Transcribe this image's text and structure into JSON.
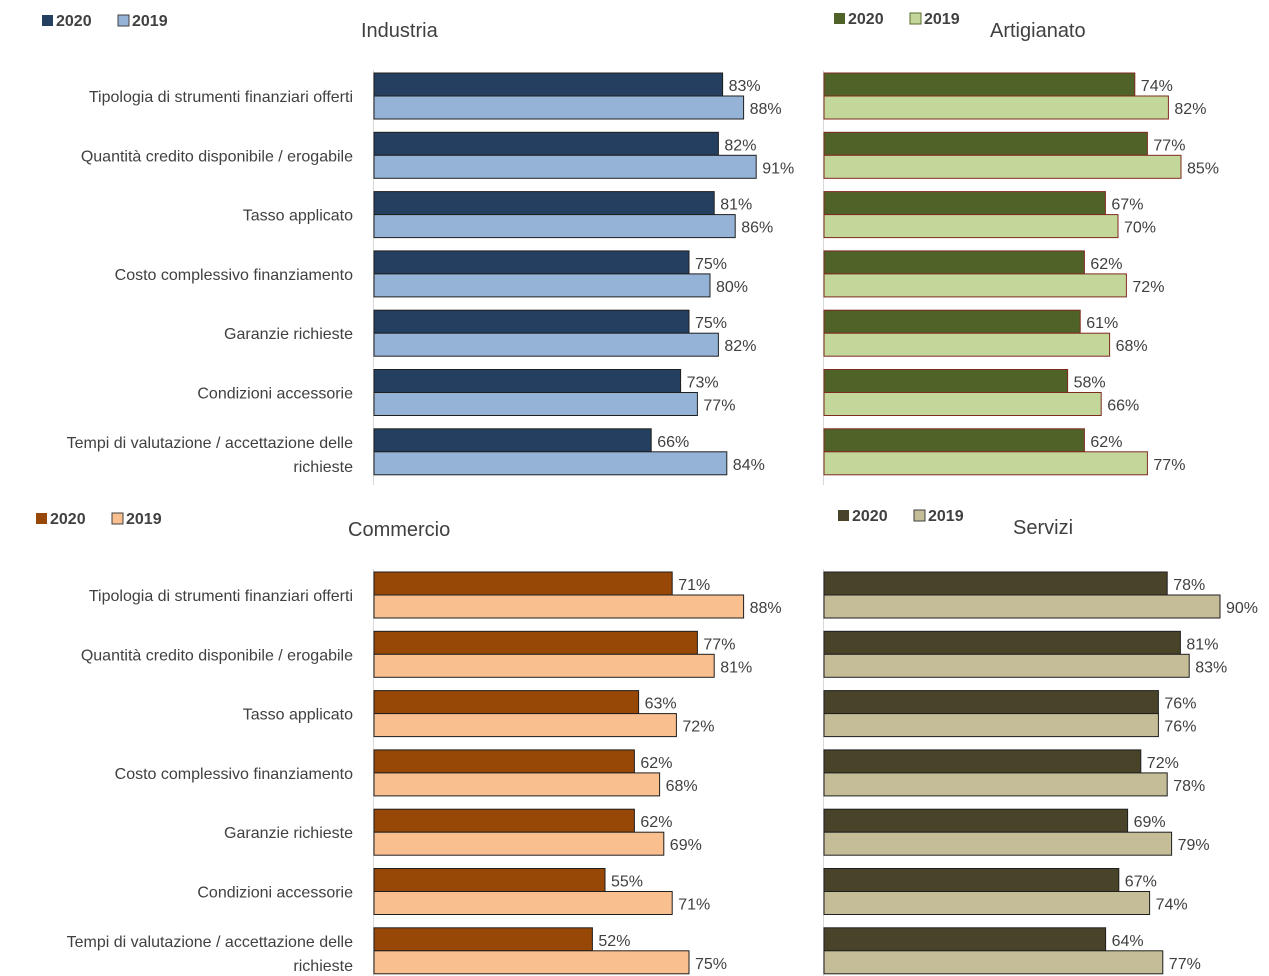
{
  "categories": [
    [
      "Tipologia di strumenti finanziari offerti"
    ],
    [
      "Quantità credito disponibile / erogabile"
    ],
    [
      "Tasso applicato"
    ],
    [
      "Costo complessivo finanziamento"
    ],
    [
      "Garanzie richieste"
    ],
    [
      "Condizioni accessorie"
    ],
    [
      "Tempi di valutazione / accettazione delle",
      "richieste"
    ]
  ],
  "chart_data": [
    {
      "type": "bar",
      "orientation": "horizontal",
      "title": "Industria",
      "legend_position": "top-left",
      "xlim": [
        0,
        100
      ],
      "unit": "%",
      "categories": [
        "Tipologia di strumenti finanziari offerti",
        "Quantità credito disponibile / erogabile",
        "Tasso applicato",
        "Costo complessivo finanziamento",
        "Garanzie richieste",
        "Condizioni accessorie",
        "Tempi di valutazione / accettazione delle richieste"
      ],
      "series": [
        {
          "name": "2020",
          "color": "#243F60",
          "values": [
            83,
            82,
            81,
            75,
            75,
            73,
            66
          ]
        },
        {
          "name": "2019",
          "color": "#95B3D7",
          "values": [
            88,
            91,
            86,
            80,
            82,
            77,
            84
          ]
        }
      ]
    },
    {
      "type": "bar",
      "orientation": "horizontal",
      "title": "Artigianato",
      "legend_position": "top-left",
      "xlim": [
        0,
        100
      ],
      "unit": "%",
      "categories": [
        "Tipologia di strumenti finanziari offerti",
        "Quantità credito disponibile / erogabile",
        "Tasso applicato",
        "Costo complessivo finanziamento",
        "Garanzie richieste",
        "Condizioni accessorie",
        "Tempi di valutazione / accettazione delle richieste"
      ],
      "series": [
        {
          "name": "2020",
          "color": "#4F6228",
          "values": [
            74,
            77,
            67,
            62,
            61,
            58,
            62
          ]
        },
        {
          "name": "2019",
          "color": "#C4D79B",
          "values": [
            82,
            85,
            70,
            72,
            68,
            66,
            77
          ]
        }
      ]
    },
    {
      "type": "bar",
      "orientation": "horizontal",
      "title": "Commercio",
      "legend_position": "top-left",
      "xlim": [
        0,
        100
      ],
      "unit": "%",
      "categories": [
        "Tipologia di strumenti finanziari offerti",
        "Quantità credito disponibile / erogabile",
        "Tasso applicato",
        "Costo complessivo finanziamento",
        "Garanzie richieste",
        "Condizioni accessorie",
        "Tempi di valutazione / accettazione delle richieste"
      ],
      "series": [
        {
          "name": "2020",
          "color": "#974706",
          "values": [
            71,
            77,
            63,
            62,
            62,
            55,
            52
          ]
        },
        {
          "name": "2019",
          "color": "#FABF8F",
          "values": [
            88,
            81,
            72,
            68,
            69,
            71,
            75
          ]
        }
      ]
    },
    {
      "type": "bar",
      "orientation": "horizontal",
      "title": "Servizi",
      "legend_position": "top-left",
      "xlim": [
        0,
        100
      ],
      "unit": "%",
      "categories": [
        "Tipologia di strumenti finanziari offerti",
        "Quantità credito disponibile / erogabile",
        "Tasso applicato",
        "Costo complessivo finanziamento",
        "Garanzie richieste",
        "Condizioni accessorie",
        "Tempi di valutazione / accettazione delle richieste"
      ],
      "series": [
        {
          "name": "2020",
          "color": "#494429",
          "values": [
            78,
            81,
            76,
            72,
            69,
            67,
            64
          ]
        },
        {
          "name": "2019",
          "color": "#C4BD97",
          "values": [
            90,
            83,
            76,
            78,
            79,
            74,
            77
          ]
        }
      ]
    }
  ],
  "colors": {
    "bar_outline_dark": "#1F1F1F",
    "bar_outline_green": "#7F2A1E",
    "axis_line": "#D9D9D9",
    "text": "#404040"
  }
}
